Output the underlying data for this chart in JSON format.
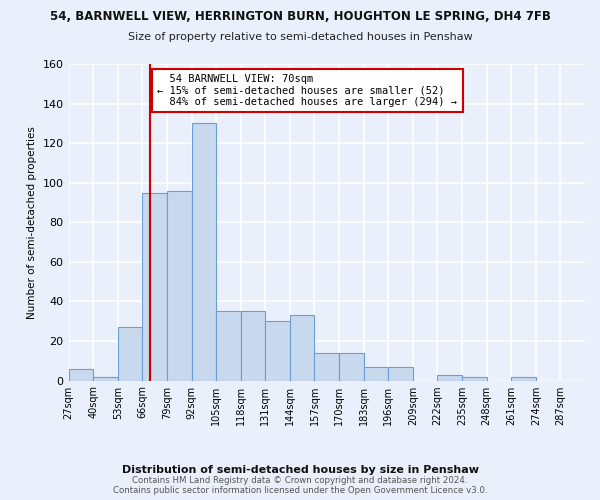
{
  "title": "54, BARNWELL VIEW, HERRINGTON BURN, HOUGHTON LE SPRING, DH4 7FB",
  "subtitle": "Size of property relative to semi-detached houses in Penshaw",
  "xlabel": "Distribution of semi-detached houses by size in Penshaw",
  "ylabel": "Number of semi-detached properties",
  "bar_values": [
    6,
    2,
    27,
    95,
    96,
    130,
    35,
    35,
    30,
    33,
    14,
    14,
    7,
    7,
    0,
    3,
    2,
    0,
    2,
    0,
    0
  ],
  "bin_edges": [
    27,
    40,
    53,
    66,
    79,
    92,
    105,
    118,
    131,
    144,
    157,
    170,
    183,
    196,
    209,
    222,
    235,
    248,
    261,
    274,
    287,
    300
  ],
  "tick_labels": [
    "27sqm",
    "40sqm",
    "53sqm",
    "66sqm",
    "79sqm",
    "92sqm",
    "105sqm",
    "118sqm",
    "131sqm",
    "144sqm",
    "157sqm",
    "170sqm",
    "183sqm",
    "196sqm",
    "209sqm",
    "222sqm",
    "235sqm",
    "248sqm",
    "261sqm",
    "274sqm",
    "287sqm"
  ],
  "bar_color": "#c8d9ee",
  "bar_edge_color": "#6b9fd4",
  "property_size": 70,
  "property_label": "54 BARNWELL VIEW: 70sqm",
  "pct_smaller": 15,
  "n_smaller": 52,
  "pct_larger": 84,
  "n_larger": 294,
  "vline_color": "#cc0000",
  "annotation_box_color": "#ffffff",
  "annotation_box_edge": "#cc0000",
  "ylim": [
    0,
    160
  ],
  "yticks": [
    0,
    20,
    40,
    60,
    80,
    100,
    120,
    140,
    160
  ],
  "bg_color": "#eaf0fb",
  "grid_color": "#ffffff",
  "footer": "Contains HM Land Registry data © Crown copyright and database right 2024.\nContains public sector information licensed under the Open Government Licence v3.0."
}
